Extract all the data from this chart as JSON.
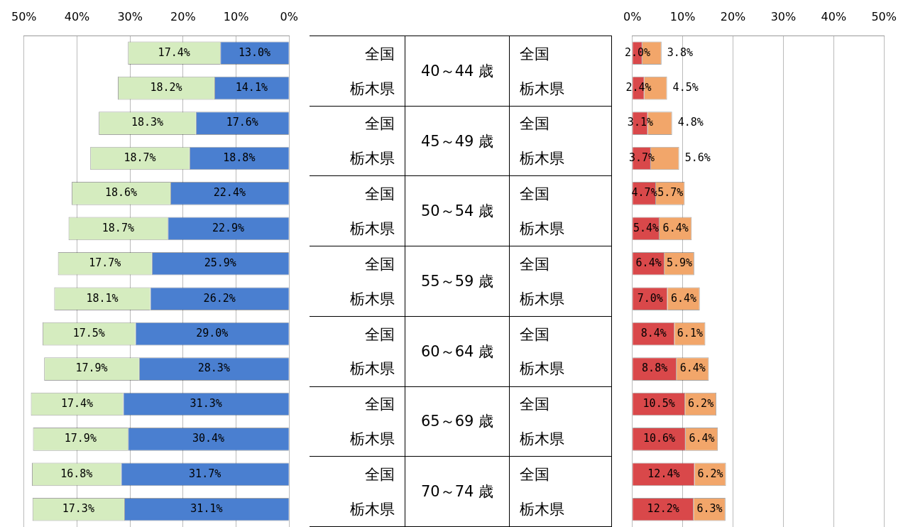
{
  "chart_data": [
    {
      "type": "bar",
      "orientation": "horizontal",
      "stacked": true,
      "grid": "x",
      "categories": [
        "全国",
        "栃木県",
        "全国",
        "栃木県",
        "全国",
        "栃木県",
        "全国",
        "栃木県",
        "全国",
        "栃木県",
        "全国",
        "栃木県",
        "全国",
        "栃木県"
      ],
      "xlim": [
        50,
        0
      ],
      "xticks": [
        {
          "value": 50,
          "label": "50%"
        },
        {
          "value": 40,
          "label": "40%"
        },
        {
          "value": 30,
          "label": "30%"
        },
        {
          "value": 20,
          "label": "20%"
        },
        {
          "value": 10,
          "label": "10%"
        },
        {
          "value": 0,
          "label": "0%"
        }
      ],
      "annotations": [
        "40～44 歳",
        "45～49 歳",
        "50～54 歳",
        "55～59 歳",
        "60～64 歳",
        "65～69 歳",
        "70～74 歳"
      ],
      "series": [
        {
          "color": "#4a7fd0",
          "values": [
            13.0,
            14.1,
            17.6,
            18.8,
            22.4,
            22.9,
            25.9,
            26.2,
            29.0,
            28.3,
            31.3,
            30.4,
            31.7,
            31.1
          ],
          "value_labels": [
            "13.0%",
            "14.1%",
            "17.6%",
            "18.8%",
            "22.4%",
            "22.9%",
            "25.9%",
            "26.2%",
            "29.0%",
            "28.3%",
            "31.3%",
            "30.4%",
            "31.7%",
            "31.1%"
          ]
        },
        {
          "color": "#d5ecbf",
          "values": [
            17.4,
            18.2,
            18.3,
            18.7,
            18.6,
            18.7,
            17.7,
            18.1,
            17.5,
            17.9,
            17.4,
            17.9,
            16.8,
            17.3
          ],
          "value_labels": [
            "17.4%",
            "18.2%",
            "18.3%",
            "18.7%",
            "18.6%",
            "18.7%",
            "17.7%",
            "18.1%",
            "17.5%",
            "17.9%",
            "17.4%",
            "17.9%",
            "16.8%",
            "17.3%"
          ]
        }
      ]
    },
    {
      "type": "bar",
      "orientation": "horizontal",
      "stacked": true,
      "grid": "x",
      "categories": [
        "全国",
        "栃木県",
        "全国",
        "栃木県",
        "全国",
        "栃木県",
        "全国",
        "栃木県",
        "全国",
        "栃木県",
        "全国",
        "栃木県",
        "全国",
        "栃木県"
      ],
      "xlim": [
        0,
        50
      ],
      "xticks": [
        {
          "value": 0,
          "label": "0%"
        },
        {
          "value": 10,
          "label": "10%"
        },
        {
          "value": 20,
          "label": "20%"
        },
        {
          "value": 30,
          "label": "30%"
        },
        {
          "value": 40,
          "label": "40%"
        },
        {
          "value": 50,
          "label": "50%"
        }
      ],
      "series": [
        {
          "color": "#d9484a",
          "values": [
            2.0,
            2.4,
            3.1,
            3.7,
            4.7,
            5.4,
            6.4,
            7.0,
            8.4,
            8.8,
            10.5,
            10.6,
            12.4,
            12.2
          ],
          "value_labels": [
            "2.0%",
            "2.4%",
            "3.1%",
            "3.7%",
            "4.7%",
            "5.4%",
            "6.4%",
            "7.0%",
            "8.4%",
            "8.8%",
            "10.5%",
            "10.6%",
            "12.4%",
            "12.2%"
          ]
        },
        {
          "color": "#f2a66a",
          "values": [
            3.8,
            4.5,
            4.8,
            5.6,
            5.7,
            6.4,
            5.9,
            6.4,
            6.1,
            6.4,
            6.2,
            6.4,
            6.2,
            6.3
          ],
          "value_labels": [
            "3.8%",
            "4.5%",
            "4.8%",
            "5.6%",
            "5.7%",
            "6.4%",
            "5.9%",
            "6.4%",
            "6.1%",
            "6.4%",
            "6.2%",
            "6.4%",
            "6.2%",
            "6.3%"
          ]
        }
      ]
    }
  ]
}
